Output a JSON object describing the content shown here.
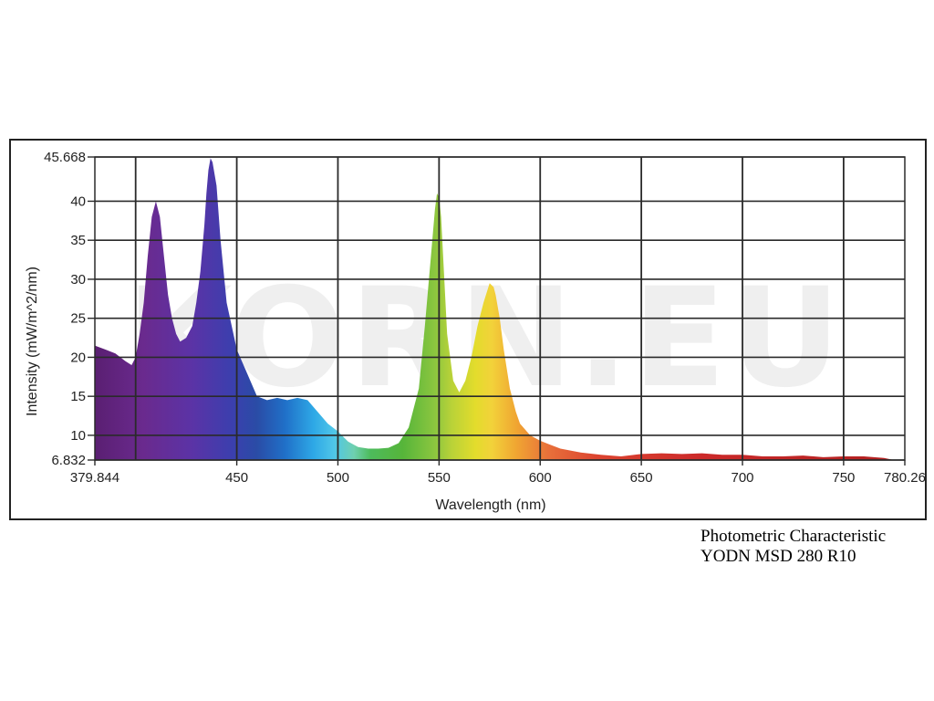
{
  "caption": {
    "line1": "Photometric Characteristic",
    "line2": "YODN MSD 280 R10"
  },
  "watermark": "KORN.EU",
  "colors": {
    "frame": "#222222",
    "grid": "#2a2a2a",
    "plot_background": "#ffffff",
    "watermark": "#efefef"
  },
  "chart_data": {
    "type": "area",
    "title": "",
    "xlabel": "Wavelength (nm)",
    "ylabel": "Intensity (mW/m^2/nm)",
    "xlim": [
      379.844,
      780.26
    ],
    "ylim": [
      6.832,
      45.668
    ],
    "x_ticks": [
      379.844,
      450,
      500,
      550,
      600,
      650,
      700,
      750,
      780.26
    ],
    "x_tick_labels": [
      "379.844",
      "450",
      "500",
      "550",
      "600",
      "650",
      "700",
      "750",
      "780.26"
    ],
    "y_ticks": [
      6.832,
      10,
      15,
      20,
      25,
      30,
      35,
      40,
      45.668
    ],
    "y_tick_labels": [
      "6.832",
      "10",
      "15",
      "20",
      "25",
      "30",
      "35",
      "40",
      "45.668"
    ],
    "x_gridlines": [
      400,
      450,
      500,
      550,
      600,
      650,
      700,
      750
    ],
    "grid": true,
    "fill": "visible-spectrum color gradient",
    "series": [
      {
        "x": [
          379.844,
          385,
          390,
          395,
          398,
          400,
          402,
          404,
          406,
          408,
          410,
          412,
          414,
          416,
          418,
          420,
          422,
          425,
          428,
          430,
          432,
          434,
          435,
          436,
          437,
          438,
          440,
          442,
          445,
          450,
          455,
          460,
          465,
          470,
          475,
          480,
          485,
          490,
          495,
          500,
          505,
          510,
          515,
          520,
          525,
          530,
          535,
          540,
          543,
          546,
          548,
          549,
          550,
          551,
          552,
          554,
          557,
          560,
          563,
          566,
          569,
          572,
          575,
          577,
          578,
          580,
          582,
          585,
          588,
          590,
          595,
          600,
          605,
          610,
          620,
          630,
          640,
          650,
          660,
          670,
          680,
          690,
          700,
          710,
          720,
          730,
          740,
          750,
          760,
          770,
          775
        ],
        "y": [
          21.5,
          21,
          20.5,
          19.5,
          19,
          20,
          23,
          27,
          33,
          38,
          40,
          38,
          33,
          28,
          25,
          23,
          22,
          22.5,
          24,
          27,
          31,
          37,
          41,
          44,
          45.5,
          45,
          42,
          35,
          27,
          21,
          18,
          15,
          14.5,
          14.8,
          14.5,
          14.8,
          14.5,
          13,
          11.5,
          10.5,
          9.2,
          8.5,
          8.3,
          8.3,
          8.4,
          9,
          11,
          16,
          24,
          33,
          39,
          41,
          40.5,
          38,
          33,
          23,
          17,
          15.5,
          17,
          20,
          24,
          27,
          29.5,
          29,
          28,
          25,
          21,
          16,
          13,
          11.5,
          10,
          9.3,
          8.8,
          8.3,
          7.8,
          7.5,
          7.3,
          7.6,
          7.7,
          7.6,
          7.7,
          7.5,
          7.5,
          7.3,
          7.3,
          7.4,
          7.2,
          7.3,
          7.3,
          7.1,
          6.832
        ]
      }
    ]
  }
}
